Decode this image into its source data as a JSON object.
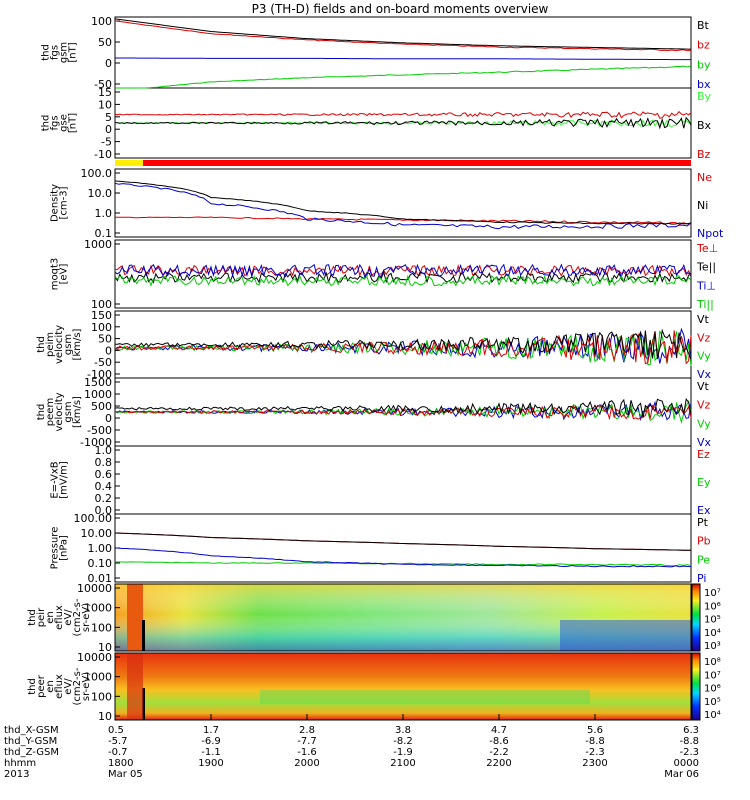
{
  "title": "P3 (TH-D) fields and on-board moments overview",
  "colors": {
    "black": "#000000",
    "red": "#dd0000",
    "green": "#00cc00",
    "blue": "#0000cc",
    "bright_green": "#33ff33"
  },
  "panels": [
    {
      "ylabel": [
        "thd",
        "fgs",
        "gsm",
        "[nT]"
      ],
      "ticks": [
        "100",
        "50",
        "0",
        "-50"
      ],
      "legend": [
        [
          "Bt",
          "black"
        ],
        [
          "bz",
          "red"
        ],
        [
          "by",
          "green"
        ],
        [
          "bx",
          "blue"
        ]
      ]
    },
    {
      "ylabel": [
        "thd",
        "fgs",
        "gse",
        "[nT]"
      ],
      "ticks": [
        "15",
        "10",
        "5",
        "0",
        "-5",
        "-10"
      ],
      "legend": [
        [
          "By",
          "bright_green"
        ],
        [
          "Bx",
          "black"
        ],
        [
          "Bz",
          "red"
        ]
      ]
    },
    {
      "ylabel": [
        "Density",
        "[cm-3]"
      ],
      "ticks": [
        "100.0",
        "10.0",
        "1.0",
        "0.1"
      ],
      "legend": [
        [
          "Ne",
          "red"
        ],
        [
          "Ni",
          "black"
        ],
        [
          "Npot",
          "blue"
        ]
      ]
    },
    {
      "ylabel": [
        "moqt3",
        "[eV]"
      ],
      "ticks": [
        "1000",
        "100"
      ],
      "legend": [
        [
          "Te⊥",
          "red"
        ],
        [
          "Te||",
          "black"
        ],
        [
          "Ti⊥",
          "blue"
        ],
        [
          "Ti||",
          "green"
        ]
      ]
    },
    {
      "ylabel": [
        "thd",
        "peim",
        "velocity",
        "gsm",
        "[km/s]"
      ],
      "ticks": [
        "150",
        "100",
        "50",
        "0",
        "-50",
        "-100"
      ],
      "legend": [
        [
          "Vt",
          "black"
        ],
        [
          "Vz",
          "red"
        ],
        [
          "Vy",
          "green"
        ],
        [
          "Vx",
          "blue"
        ]
      ]
    },
    {
      "ylabel": [
        "thd",
        "peem",
        "velocity",
        "gsm",
        "[km/s]"
      ],
      "ticks": [
        "1500",
        "1000",
        "500",
        "0",
        "-500",
        "-1000"
      ],
      "legend": [
        [
          "Vt",
          "black"
        ],
        [
          "Vz",
          "red"
        ],
        [
          "Vy",
          "green"
        ],
        [
          "Vx",
          "blue"
        ]
      ]
    },
    {
      "ylabel": [
        "E=-VxB",
        "[mV/m]"
      ],
      "ticks": [
        "1.0",
        "0.8",
        "0.6",
        "0.4",
        "0.2",
        "0.0"
      ],
      "legend": [
        [
          "Ez",
          "red"
        ],
        [
          "Ey",
          "green"
        ],
        [
          "Ex",
          "blue"
        ]
      ]
    },
    {
      "ylabel": [
        "Pressure",
        "[nPa]"
      ],
      "ticks": [
        "100.00",
        "10.00",
        "1.00",
        "0.10",
        "0.01"
      ],
      "legend": [
        [
          "Pt",
          "black"
        ],
        [
          "Pb",
          "red"
        ],
        [
          "Pe",
          "green"
        ],
        [
          "Pi",
          "blue"
        ]
      ]
    },
    {
      "ylabel": [
        "thd",
        "peir",
        "en",
        "eflux",
        "eV/",
        "(cm2-s-",
        "sr-eV)"
      ],
      "ticks": [
        "10000",
        "1000",
        "100",
        "10"
      ],
      "cbar": [
        "10⁷",
        "10⁶",
        "10⁵",
        "10⁴",
        "10³"
      ]
    },
    {
      "ylabel": [
        "thd",
        "peer",
        "en",
        "eflux",
        "eV/",
        "(cm2-s-",
        "sr-eV)"
      ],
      "ticks": [
        "10000",
        "1000",
        "100",
        "10"
      ],
      "cbar": [
        "10⁸",
        "10⁷",
        "10⁶",
        "10⁵",
        "10⁴"
      ]
    }
  ],
  "footer": {
    "labels": [
      "thd_X-GSM",
      "thd_Y-GSM",
      "thd_Z-GSM",
      "hhmm",
      "2013"
    ],
    "columns": [
      [
        "0.5",
        "-5.7",
        "-0.7",
        "1800",
        "Mar 05"
      ],
      [
        "1.7",
        "-6.9",
        "-1.1",
        "1900",
        ""
      ],
      [
        "2.8",
        "-7.7",
        "-1.6",
        "2000",
        ""
      ],
      [
        "3.8",
        "-8.2",
        "-1.9",
        "2100",
        ""
      ],
      [
        "4.7",
        "-8.6",
        "-2.2",
        "2200",
        ""
      ],
      [
        "5.6",
        "-8.8",
        "-2.3",
        "2300",
        ""
      ],
      [
        "6.3",
        "-8.8",
        "-2.3",
        "0000",
        "Mar 06"
      ]
    ]
  },
  "chart_data": {
    "type": "line",
    "title": "P3 (TH-D) fields and on-board moments overview",
    "x": [
      "1800",
      "1900",
      "2000",
      "2100",
      "2200",
      "2300",
      "0000"
    ],
    "series": [
      {
        "name": "Bt",
        "values": [
          105,
          75,
          58,
          48,
          41,
          37,
          33
        ]
      },
      {
        "name": "bz",
        "values": [
          100,
          70,
          55,
          45,
          38,
          34,
          30
        ]
      },
      {
        "name": "by",
        "values": [
          -67,
          -45,
          -35,
          -28,
          -22,
          -15,
          -8
        ]
      },
      {
        "name": "bx",
        "values": [
          12,
          11,
          11,
          10,
          10,
          9,
          8
        ]
      },
      {
        "name": "Ni",
        "values": [
          40,
          6,
          1.3,
          0.5,
          0.35,
          0.3,
          0.3
        ]
      },
      {
        "name": "Ne",
        "values": [
          0.6,
          0.6,
          0.5,
          0.45,
          0.4,
          0.35,
          0.3
        ]
      },
      {
        "name": "Npot",
        "values": [
          30,
          3,
          0.5,
          0.25,
          0.2,
          0.22,
          0.25
        ]
      },
      {
        "name": "Pt",
        "values": [
          10,
          5,
          3,
          2,
          1.3,
          0.9,
          0.7
        ]
      },
      {
        "name": "Pb",
        "values": [
          10,
          5,
          3,
          2,
          1.3,
          0.9,
          0.7
        ]
      },
      {
        "name": "Pi",
        "values": [
          1.0,
          0.3,
          0.12,
          0.08,
          0.07,
          0.06,
          0.06
        ]
      },
      {
        "name": "Pe",
        "values": [
          0.12,
          0.1,
          0.1,
          0.09,
          0.08,
          0.08,
          0.07
        ]
      }
    ]
  }
}
